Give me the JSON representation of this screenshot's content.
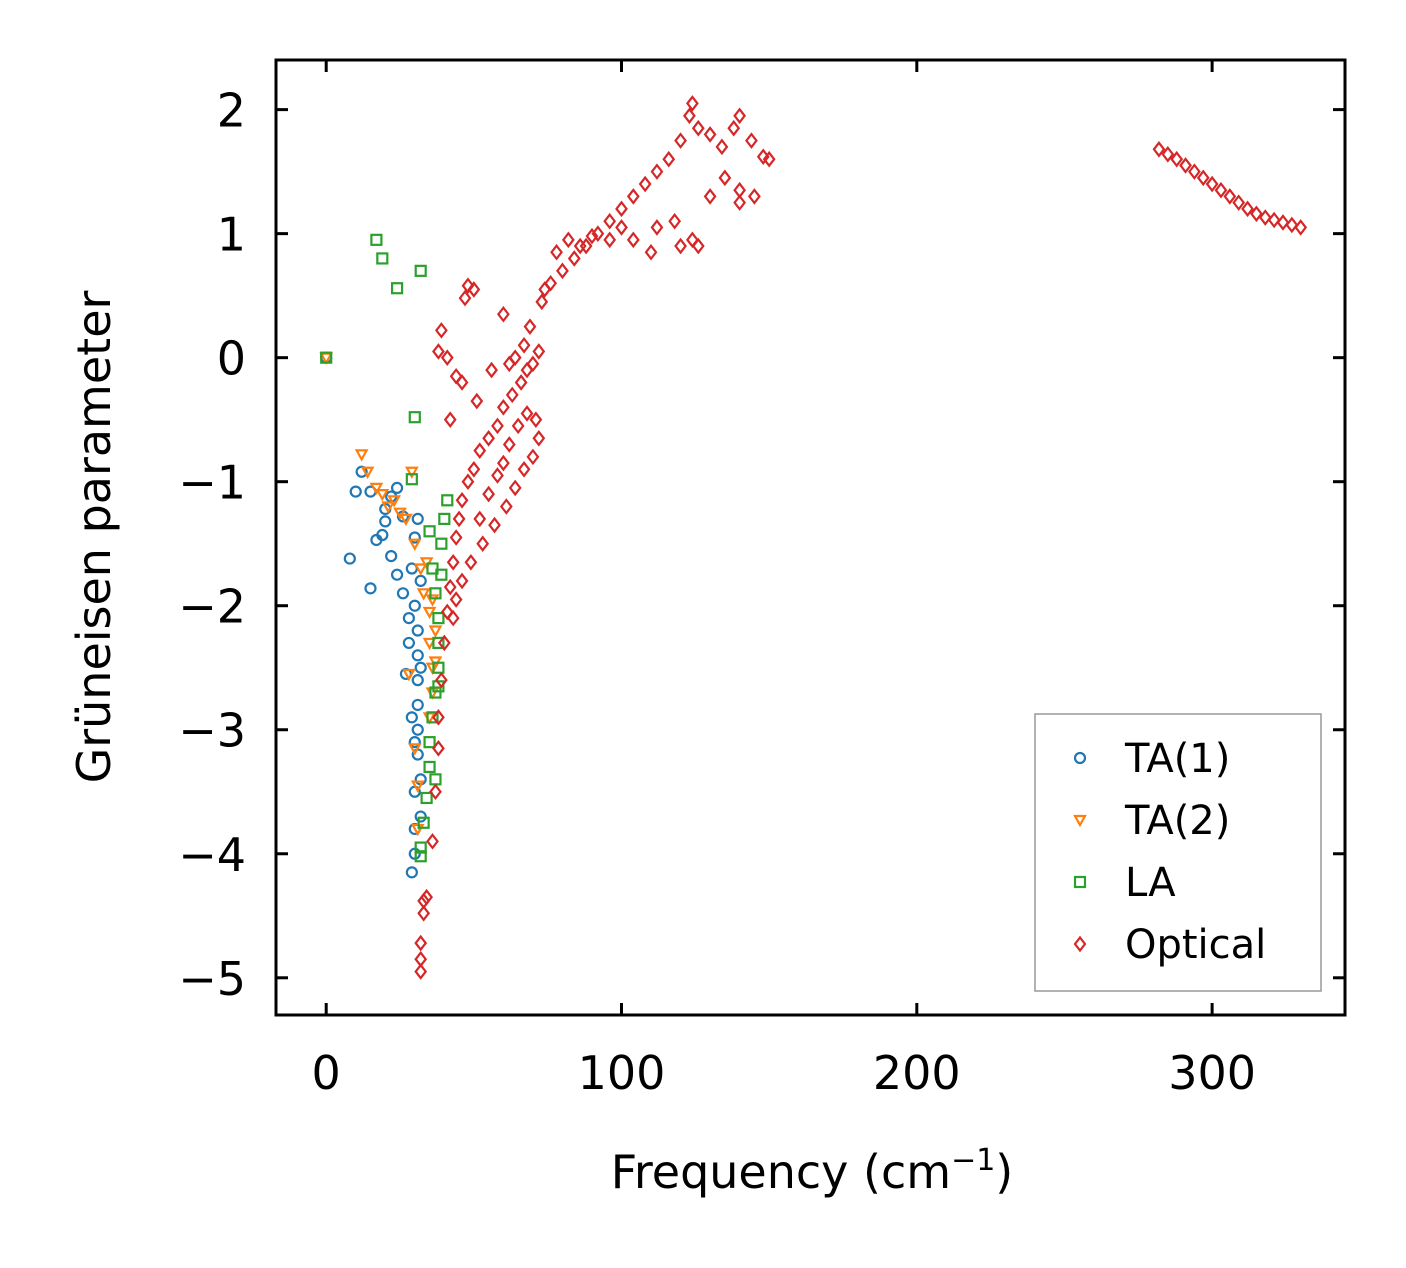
{
  "chart_data": {
    "type": "scatter",
    "title": "",
    "xlabel": "Frequency (cm",
    "xlabel_superscript": "−1",
    "xlabel_suffix": ")",
    "ylabel": "Grüneisen parameter",
    "xlim": [
      -17,
      345
    ],
    "ylim": [
      -5.3,
      2.4
    ],
    "xticks": [
      0,
      100,
      200,
      300
    ],
    "xtick_labels": [
      "0",
      "100",
      "200",
      "300"
    ],
    "yticks": [
      2,
      1,
      0,
      -1,
      -2,
      -3,
      -4,
      -5
    ],
    "ytick_labels": [
      "2",
      "1",
      "0",
      "−1",
      "−2",
      "−3",
      "−4",
      "−5"
    ],
    "grid": false,
    "legend_position": "lower-right",
    "series": [
      {
        "name": "TA(1)",
        "marker": "circle",
        "color": "#1f77b4",
        "points": [
          [
            0,
            0
          ],
          [
            8,
            -1.62
          ],
          [
            12,
            -0.92
          ],
          [
            10,
            -1.08
          ],
          [
            15,
            -1.08
          ],
          [
            17,
            -1.47
          ],
          [
            19,
            -1.43
          ],
          [
            20,
            -1.32
          ],
          [
            20,
            -1.22
          ],
          [
            15,
            -1.86
          ],
          [
            22,
            -1.12
          ],
          [
            24,
            -1.05
          ],
          [
            26,
            -1.28
          ],
          [
            22,
            -1.6
          ],
          [
            24,
            -1.75
          ],
          [
            26,
            -1.9
          ],
          [
            28,
            -2.1
          ],
          [
            28,
            -2.3
          ],
          [
            27,
            -2.55
          ],
          [
            29,
            -2.9
          ],
          [
            30,
            -3.1
          ],
          [
            30,
            -3.5
          ],
          [
            30,
            -3.8
          ],
          [
            30,
            -4.0
          ],
          [
            29,
            -4.15
          ],
          [
            30,
            -2.0
          ],
          [
            31,
            -2.2
          ],
          [
            31,
            -2.4
          ],
          [
            31,
            -2.6
          ],
          [
            31,
            -2.8
          ],
          [
            31,
            -3.0
          ],
          [
            31,
            -3.2
          ],
          [
            30,
            -1.45
          ],
          [
            31,
            -1.3
          ],
          [
            29,
            -1.7
          ],
          [
            32,
            -1.8
          ],
          [
            32,
            -2.5
          ],
          [
            32,
            -3.4
          ],
          [
            32,
            -3.7
          ]
        ]
      },
      {
        "name": "TA(2)",
        "marker": "triangle-down",
        "color": "#ff7f0e",
        "points": [
          [
            0,
            0
          ],
          [
            12,
            -0.78
          ],
          [
            14,
            -0.92
          ],
          [
            17,
            -1.05
          ],
          [
            19,
            -1.1
          ],
          [
            21,
            -1.2
          ],
          [
            23,
            -1.15
          ],
          [
            25,
            -1.25
          ],
          [
            27,
            -1.3
          ],
          [
            29,
            -0.92
          ],
          [
            30,
            -1.5
          ],
          [
            32,
            -1.7
          ],
          [
            33,
            -1.9
          ],
          [
            35,
            -2.05
          ],
          [
            35,
            -2.3
          ],
          [
            36,
            -2.5
          ],
          [
            36,
            -2.7
          ],
          [
            35,
            -2.9
          ],
          [
            28,
            -2.55
          ],
          [
            30,
            -3.15
          ],
          [
            31,
            -3.45
          ],
          [
            31,
            -3.8
          ],
          [
            34,
            -1.65
          ],
          [
            36,
            -1.95
          ],
          [
            37,
            -2.2
          ],
          [
            37,
            -2.45
          ]
        ]
      },
      {
        "name": "LA",
        "marker": "square",
        "color": "#2ca02c",
        "points": [
          [
            0,
            0
          ],
          [
            17,
            0.95
          ],
          [
            19,
            0.8
          ],
          [
            24,
            0.56
          ],
          [
            32,
            0.7
          ],
          [
            30,
            -0.48
          ],
          [
            29,
            -0.98
          ],
          [
            35,
            -1.4
          ],
          [
            36,
            -1.7
          ],
          [
            37,
            -1.9
          ],
          [
            38,
            -2.1
          ],
          [
            38,
            -2.3
          ],
          [
            38,
            -2.5
          ],
          [
            37,
            -2.7
          ],
          [
            36,
            -2.9
          ],
          [
            35,
            -3.1
          ],
          [
            35,
            -3.3
          ],
          [
            34,
            -3.55
          ],
          [
            33,
            -3.75
          ],
          [
            32,
            -3.95
          ],
          [
            32,
            -4.02
          ],
          [
            39,
            -1.5
          ],
          [
            40,
            -1.3
          ],
          [
            41,
            -1.15
          ],
          [
            39,
            -1.75
          ],
          [
            38,
            -2.65
          ],
          [
            37,
            -3.4
          ]
        ]
      },
      {
        "name": "Optical",
        "marker": "diamond",
        "color": "#d62728",
        "points": [
          [
            32,
            -4.95
          ],
          [
            32,
            -4.85
          ],
          [
            32,
            -4.72
          ],
          [
            33,
            -4.48
          ],
          [
            33,
            -4.38
          ],
          [
            34,
            -4.35
          ],
          [
            36,
            -3.9
          ],
          [
            37,
            -3.5
          ],
          [
            38,
            -3.15
          ],
          [
            38,
            -2.9
          ],
          [
            39,
            -2.6
          ],
          [
            40,
            -2.3
          ],
          [
            41,
            -2.05
          ],
          [
            42,
            -1.85
          ],
          [
            43,
            -1.65
          ],
          [
            44,
            -1.45
          ],
          [
            45,
            -1.3
          ],
          [
            46,
            -1.15
          ],
          [
            48,
            -1.0
          ],
          [
            50,
            -0.9
          ],
          [
            52,
            -0.75
          ],
          [
            55,
            -0.65
          ],
          [
            58,
            -0.55
          ],
          [
            60,
            -0.4
          ],
          [
            63,
            -0.3
          ],
          [
            66,
            -0.2
          ],
          [
            68,
            -0.1
          ],
          [
            70,
            -0.05
          ],
          [
            42,
            -0.5
          ],
          [
            38,
            0.05
          ],
          [
            39,
            0.22
          ],
          [
            41,
            0.0
          ],
          [
            44,
            -0.15
          ],
          [
            46,
            -0.2
          ],
          [
            47,
            0.48
          ],
          [
            48,
            0.58
          ],
          [
            50,
            0.55
          ],
          [
            51,
            -0.35
          ],
          [
            56,
            -0.1
          ],
          [
            60,
            0.35
          ],
          [
            62,
            -0.05
          ],
          [
            64,
            0.0
          ],
          [
            67,
            0.1
          ],
          [
            69,
            0.25
          ],
          [
            72,
            0.05
          ],
          [
            73,
            0.45
          ],
          [
            76,
            0.6
          ],
          [
            80,
            0.7
          ],
          [
            84,
            0.8
          ],
          [
            88,
            0.9
          ],
          [
            92,
            1.0
          ],
          [
            96,
            1.1
          ],
          [
            100,
            1.2
          ],
          [
            104,
            1.3
          ],
          [
            108,
            1.4
          ],
          [
            112,
            1.5
          ],
          [
            116,
            1.6
          ],
          [
            120,
            1.75
          ],
          [
            123,
            1.95
          ],
          [
            124,
            2.05
          ],
          [
            126,
            1.85
          ],
          [
            130,
            1.8
          ],
          [
            134,
            1.7
          ],
          [
            138,
            1.85
          ],
          [
            140,
            1.95
          ],
          [
            144,
            1.75
          ],
          [
            148,
            1.62
          ],
          [
            150,
            1.6
          ],
          [
            112,
            1.05
          ],
          [
            118,
            1.1
          ],
          [
            124,
            0.95
          ],
          [
            126,
            0.9
          ],
          [
            130,
            1.3
          ],
          [
            135,
            1.45
          ],
          [
            140,
            1.35
          ],
          [
            145,
            1.3
          ],
          [
            140,
            1.25
          ],
          [
            104,
            0.95
          ],
          [
            110,
            0.85
          ],
          [
            120,
            0.9
          ],
          [
            100,
            1.05
          ],
          [
            96,
            0.95
          ],
          [
            90,
            0.98
          ],
          [
            86,
            0.9
          ],
          [
            82,
            0.95
          ],
          [
            78,
            0.85
          ],
          [
            74,
            0.55
          ],
          [
            52,
            -1.3
          ],
          [
            55,
            -1.1
          ],
          [
            58,
            -0.95
          ],
          [
            60,
            -0.85
          ],
          [
            62,
            -0.7
          ],
          [
            65,
            -0.55
          ],
          [
            68,
            -0.45
          ],
          [
            71,
            -0.5
          ],
          [
            72,
            -0.65
          ],
          [
            70,
            -0.8
          ],
          [
            67,
            -0.9
          ],
          [
            64,
            -1.05
          ],
          [
            61,
            -1.2
          ],
          [
            57,
            -1.35
          ],
          [
            53,
            -1.5
          ],
          [
            49,
            -1.65
          ],
          [
            46,
            -1.8
          ],
          [
            44,
            -1.95
          ],
          [
            43,
            -2.1
          ],
          [
            282,
            1.68
          ],
          [
            285,
            1.64
          ],
          [
            288,
            1.6
          ],
          [
            291,
            1.55
          ],
          [
            294,
            1.5
          ],
          [
            297,
            1.45
          ],
          [
            300,
            1.4
          ],
          [
            303,
            1.35
          ],
          [
            306,
            1.3
          ],
          [
            309,
            1.25
          ],
          [
            312,
            1.2
          ],
          [
            315,
            1.16
          ],
          [
            318,
            1.13
          ],
          [
            321,
            1.11
          ],
          [
            324,
            1.09
          ],
          [
            327,
            1.07
          ],
          [
            330,
            1.05
          ]
        ]
      }
    ]
  }
}
